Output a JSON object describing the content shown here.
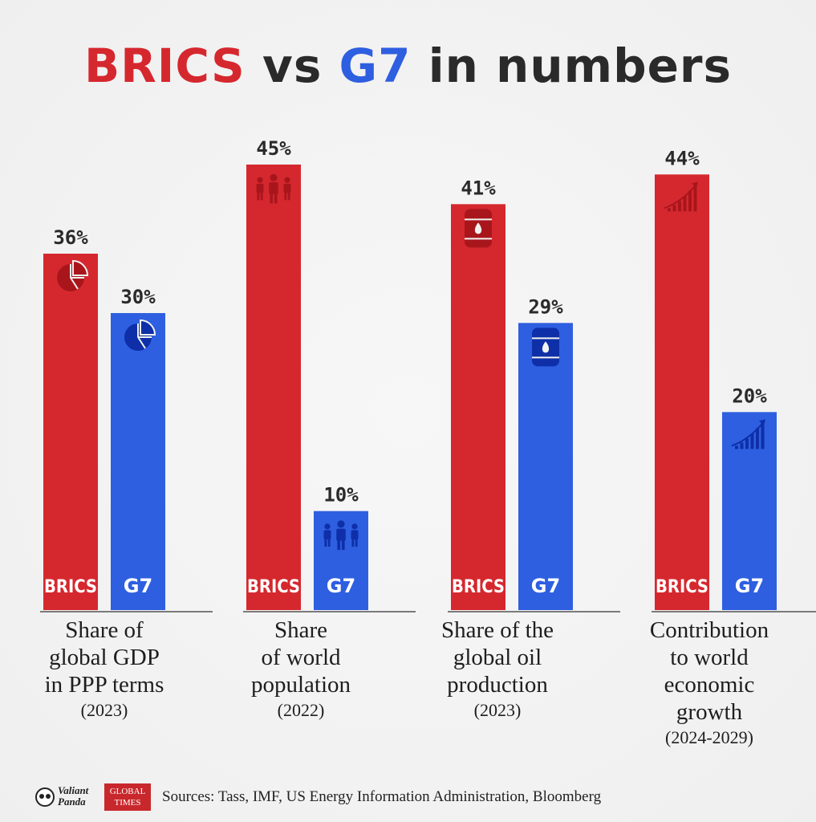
{
  "title": {
    "part1": "BRICS",
    "part2": " vs ",
    "part3": "G7",
    "part4": " in numbers"
  },
  "colors": {
    "brics": "#d5282e",
    "g7": "#2e5fe0",
    "brics_icon": "#a8161c",
    "g7_icon": "#0e2fa8"
  },
  "chart_data": {
    "type": "bar",
    "title": "BRICS vs G7 in numbers",
    "categories": [
      "Share of global GDP in PPP terms (2023)",
      "Share of world population (2022)",
      "Share of the global oil production (2023)",
      "Contribution to world economic growth (2024-2029)"
    ],
    "series": [
      {
        "name": "BRICS",
        "values": [
          36,
          45,
          41,
          44
        ]
      },
      {
        "name": "G7",
        "values": [
          30,
          10,
          29,
          20
        ]
      }
    ],
    "value_labels": {
      "BRICS": [
        "36%",
        "45%",
        "41%",
        "44%"
      ],
      "G7": [
        "30%",
        "10%",
        "29%",
        "20%"
      ]
    },
    "unit": "%",
    "ylim": [
      0,
      45
    ],
    "grid": false,
    "legend": "bar-labels"
  },
  "groups": [
    {
      "caption_lines": [
        "Share of",
        "global GDP",
        "in PPP terms"
      ],
      "year": "(2023)",
      "icon": "pie-chart-icon"
    },
    {
      "caption_lines": [
        "Share",
        "of world",
        "population"
      ],
      "year": "(2022)",
      "icon": "people-icon"
    },
    {
      "caption_lines": [
        "Share of the",
        "global oil",
        "production"
      ],
      "year": "(2023)",
      "icon": "oil-barrel-icon"
    },
    {
      "caption_lines": [
        "Contribution",
        "to world",
        "economic",
        "growth"
      ],
      "year": "(2024-2029)",
      "icon": "growth-chart-icon"
    }
  ],
  "footer": {
    "logo_valiant_line1": "Valiant",
    "logo_valiant_line2": "Panda",
    "logo_gt_line1": "GLOBAL",
    "logo_gt_line2": "TIMES",
    "sources": "Sources: Tass, IMF, US Energy Information Administration, Bloomberg"
  }
}
